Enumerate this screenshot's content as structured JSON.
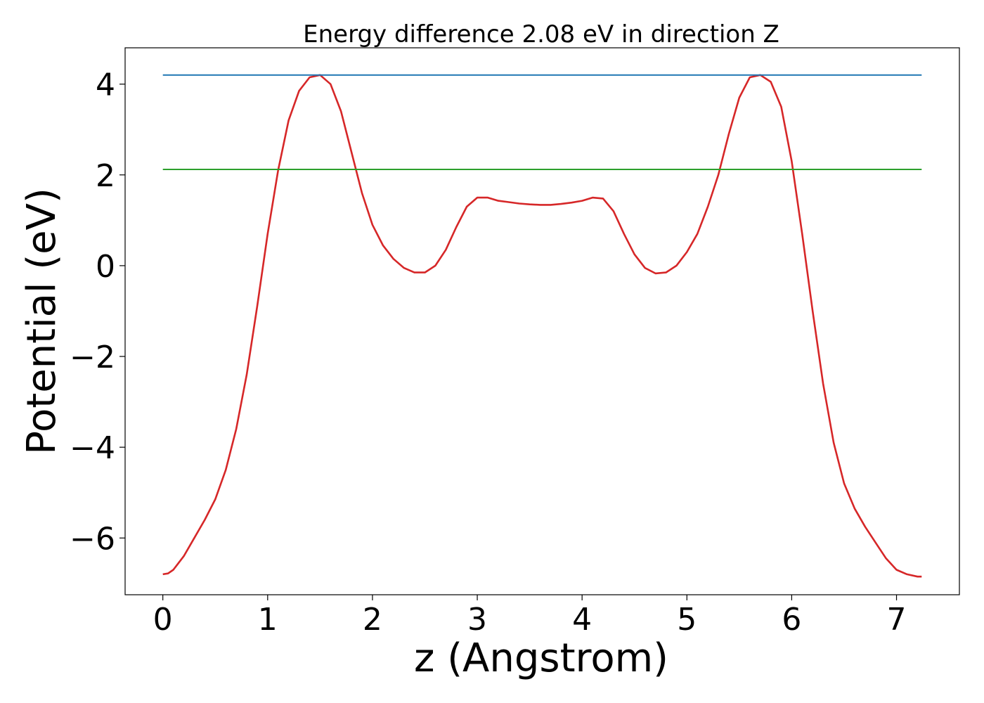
{
  "chart_data": {
    "type": "line",
    "title": "Energy difference 2.08 eV in direction Z",
    "xlabel": "z (Angstrom)",
    "ylabel": "Potential (eV)",
    "xlim": [
      -0.36,
      7.6
    ],
    "ylim": [
      -7.25,
      4.8
    ],
    "xticks": [
      0,
      1,
      2,
      3,
      4,
      5,
      6,
      7
    ],
    "xtick_labels": [
      "0",
      "1",
      "2",
      "3",
      "4",
      "5",
      "6",
      "7"
    ],
    "yticks": [
      -6,
      -4,
      -2,
      0,
      2,
      4
    ],
    "ytick_labels": [
      "−6",
      "−4",
      "−2",
      "0",
      "2",
      "4"
    ],
    "grid": false,
    "legend": "none",
    "series": [
      {
        "color": "#d62728",
        "x": [
          0.0,
          0.05,
          0.1,
          0.2,
          0.3,
          0.4,
          0.5,
          0.6,
          0.7,
          0.8,
          0.9,
          1.0,
          1.1,
          1.2,
          1.3,
          1.4,
          1.5,
          1.6,
          1.7,
          1.8,
          1.9,
          2.0,
          2.1,
          2.2,
          2.3,
          2.4,
          2.5,
          2.6,
          2.7,
          2.8,
          2.9,
          3.0,
          3.1,
          3.2,
          3.3,
          3.4,
          3.5,
          3.6,
          3.7,
          3.8,
          3.9,
          4.0,
          4.1,
          4.2,
          4.3,
          4.4,
          4.5,
          4.6,
          4.7,
          4.8,
          4.9,
          5.0,
          5.1,
          5.2,
          5.3,
          5.4,
          5.5,
          5.6,
          5.7,
          5.8,
          5.9,
          6.0,
          6.1,
          6.2,
          6.3,
          6.4,
          6.5,
          6.6,
          6.7,
          6.8,
          6.9,
          7.0,
          7.1,
          7.2,
          7.24
        ],
        "y": [
          -6.8,
          -6.78,
          -6.7,
          -6.4,
          -6.0,
          -5.6,
          -5.15,
          -4.5,
          -3.6,
          -2.4,
          -0.9,
          0.7,
          2.1,
          3.2,
          3.85,
          4.15,
          4.2,
          4.0,
          3.4,
          2.5,
          1.6,
          0.9,
          0.45,
          0.15,
          -0.05,
          -0.15,
          -0.15,
          0.0,
          0.35,
          0.85,
          1.3,
          1.5,
          1.5,
          1.43,
          1.4,
          1.37,
          1.35,
          1.34,
          1.34,
          1.36,
          1.39,
          1.43,
          1.5,
          1.48,
          1.2,
          0.7,
          0.25,
          -0.05,
          -0.17,
          -0.15,
          0.0,
          0.3,
          0.7,
          1.3,
          2.0,
          2.9,
          3.7,
          4.15,
          4.2,
          4.05,
          3.5,
          2.3,
          0.7,
          -1.0,
          -2.6,
          -3.9,
          -4.8,
          -5.35,
          -5.75,
          -6.1,
          -6.45,
          -6.7,
          -6.8,
          -6.85,
          -6.85
        ]
      },
      {
        "color": "#1f77b4",
        "x": [
          0.0,
          7.24
        ],
        "y": [
          4.2,
          4.2
        ]
      },
      {
        "color": "#2ca02c",
        "x": [
          0.0,
          7.24
        ],
        "y": [
          2.12,
          2.12
        ]
      }
    ]
  }
}
